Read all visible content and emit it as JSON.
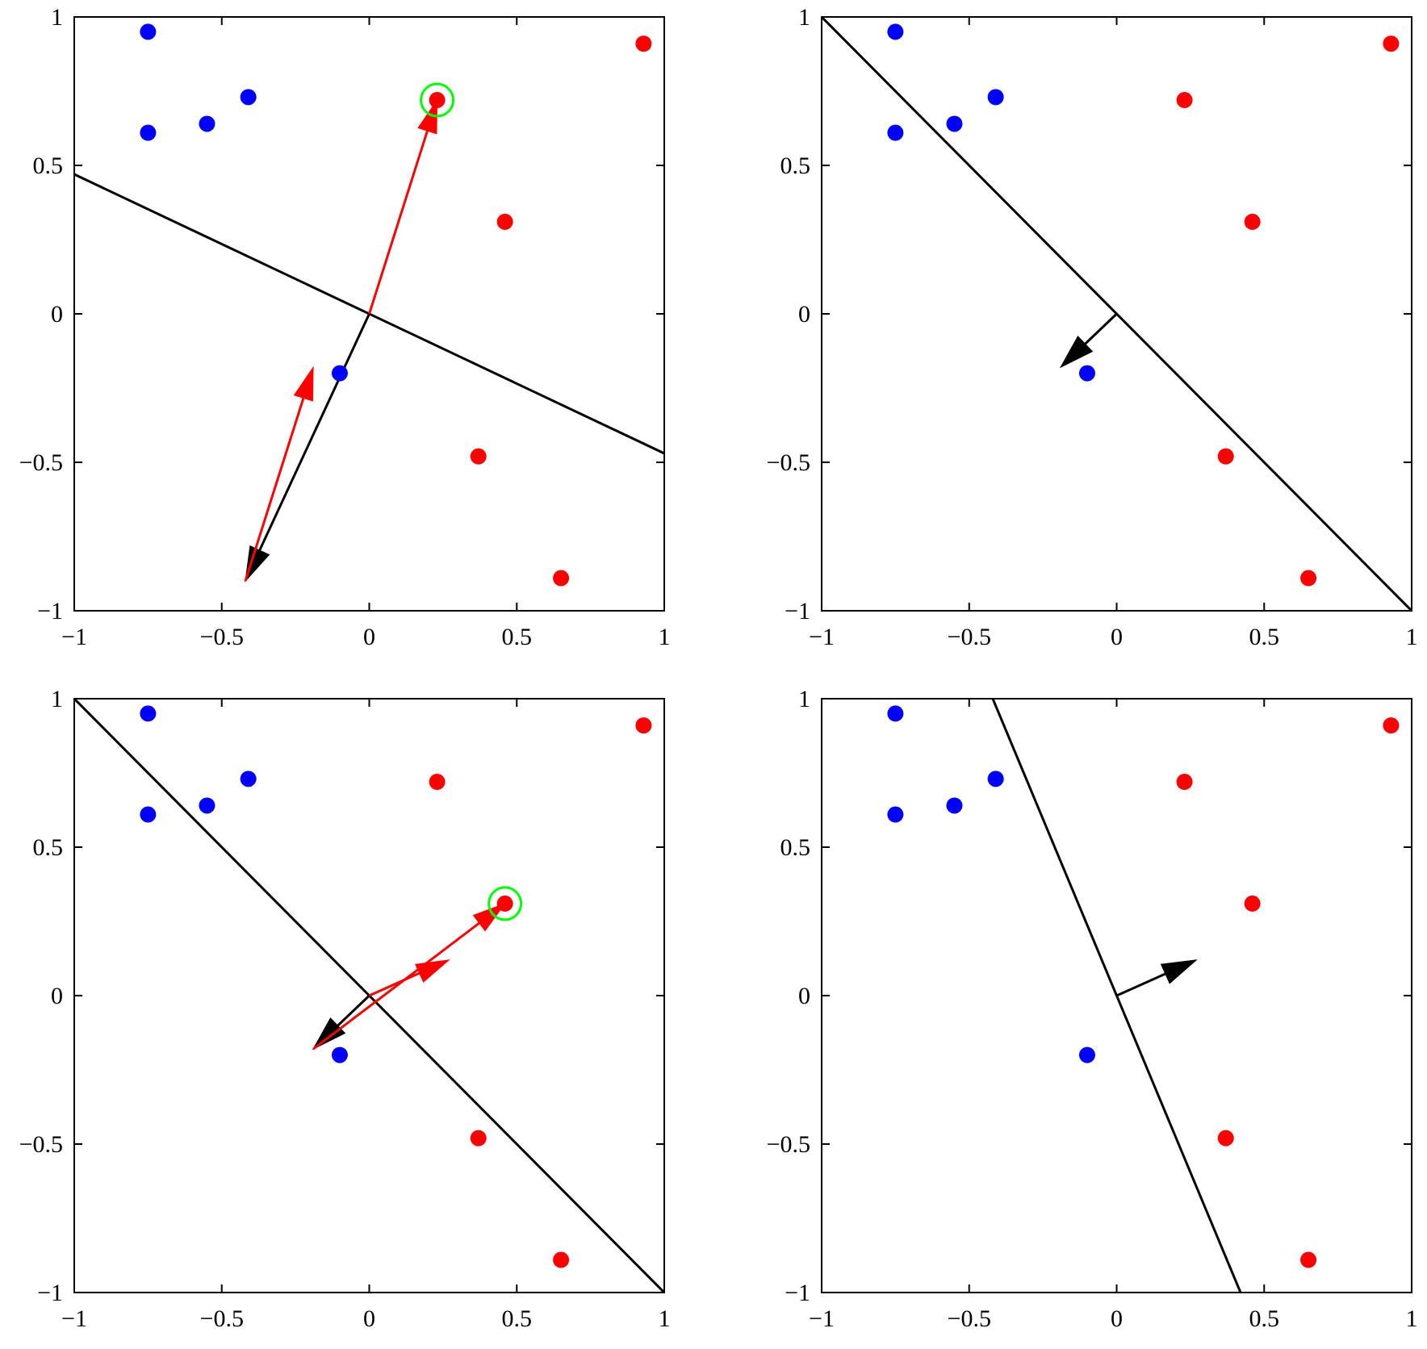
{
  "colors": {
    "class_a": "#0000ff",
    "class_b": "#ff0000",
    "highlight": "#00ff00",
    "boundary": "#000000",
    "update": "#ff0000"
  },
  "chart_data": [
    {
      "type": "scatter",
      "panel": "top-left",
      "xlim": [
        -1,
        1
      ],
      "ylim": [
        -1,
        1
      ],
      "xticks": [
        "−1",
        "−0.5",
        "0",
        "0.5",
        "1"
      ],
      "yticks": [
        "−1",
        "−0.5",
        "0",
        "0.5",
        "1"
      ],
      "grid": false,
      "series": [
        {
          "points": [
            [
              -0.75,
              0.61
            ],
            [
              -0.75,
              0.95
            ],
            [
              -0.55,
              0.64
            ],
            [
              -0.41,
              0.73
            ],
            [
              -0.1,
              -0.2
            ]
          ],
          "color_key": "class_a"
        },
        {
          "points": [
            [
              0.23,
              0.72
            ],
            [
              0.46,
              0.31
            ],
            [
              0.37,
              -0.48
            ],
            [
              0.65,
              -0.89
            ],
            [
              0.93,
              0.91
            ]
          ],
          "color_key": "class_b"
        }
      ],
      "highlighted_point": [
        0.23,
        0.72
      ],
      "boundary_line": [
        [
          -1,
          0.47
        ],
        [
          1,
          -0.47
        ]
      ],
      "weight_vector": {
        "from": [
          0,
          0
        ],
        "to": [
          -0.42,
          -0.9
        ]
      },
      "update_vectors": [
        {
          "from": [
            0,
            0
          ],
          "to": [
            0.23,
            0.72
          ]
        },
        {
          "from": [
            -0.42,
            -0.9
          ],
          "to": [
            -0.19,
            -0.18
          ]
        }
      ]
    },
    {
      "type": "scatter",
      "panel": "top-right",
      "xlim": [
        -1,
        1
      ],
      "ylim": [
        -1,
        1
      ],
      "xticks": [
        "−1",
        "−0.5",
        "0",
        "0.5",
        "1"
      ],
      "yticks": [
        "−1",
        "−0.5",
        "0",
        "0.5",
        "1"
      ],
      "grid": false,
      "series": [
        {
          "points": [
            [
              -0.75,
              0.61
            ],
            [
              -0.75,
              0.95
            ],
            [
              -0.55,
              0.64
            ],
            [
              -0.41,
              0.73
            ],
            [
              -0.1,
              -0.2
            ]
          ],
          "color_key": "class_a"
        },
        {
          "points": [
            [
              0.23,
              0.72
            ],
            [
              0.46,
              0.31
            ],
            [
              0.37,
              -0.48
            ],
            [
              0.65,
              -0.89
            ],
            [
              0.93,
              0.91
            ]
          ],
          "color_key": "class_b"
        }
      ],
      "boundary_line": [
        [
          -1,
          1
        ],
        [
          1,
          -1
        ]
      ],
      "weight_vector": {
        "from": [
          0,
          0
        ],
        "to": [
          -0.19,
          -0.18
        ]
      },
      "update_vectors": []
    },
    {
      "type": "scatter",
      "panel": "bottom-left",
      "xlim": [
        -1,
        1
      ],
      "ylim": [
        -1,
        1
      ],
      "xticks": [
        "−1",
        "−0.5",
        "0",
        "0.5",
        "1"
      ],
      "yticks": [
        "−1",
        "−0.5",
        "0",
        "0.5",
        "1"
      ],
      "grid": false,
      "series": [
        {
          "points": [
            [
              -0.75,
              0.61
            ],
            [
              -0.75,
              0.95
            ],
            [
              -0.55,
              0.64
            ],
            [
              -0.41,
              0.73
            ],
            [
              -0.1,
              -0.2
            ]
          ],
          "color_key": "class_a"
        },
        {
          "points": [
            [
              0.23,
              0.72
            ],
            [
              0.46,
              0.31
            ],
            [
              0.37,
              -0.48
            ],
            [
              0.65,
              -0.89
            ],
            [
              0.93,
              0.91
            ]
          ],
          "color_key": "class_b"
        }
      ],
      "highlighted_point": [
        0.46,
        0.31
      ],
      "boundary_line": [
        [
          -1,
          1
        ],
        [
          1,
          -1
        ]
      ],
      "weight_vector": {
        "from": [
          0,
          0
        ],
        "to": [
          -0.19,
          -0.18
        ]
      },
      "update_vectors": [
        {
          "from": [
            -0.19,
            -0.18
          ],
          "to": [
            0.46,
            0.31
          ]
        },
        {
          "from": [
            0,
            0
          ],
          "to": [
            0.27,
            0.12
          ]
        }
      ]
    },
    {
      "type": "scatter",
      "panel": "bottom-right",
      "xlim": [
        -1,
        1
      ],
      "ylim": [
        -1,
        1
      ],
      "xticks": [
        "−1",
        "−0.5",
        "0",
        "0.5",
        "1"
      ],
      "yticks": [
        "−1",
        "−0.5",
        "0",
        "0.5",
        "1"
      ],
      "grid": false,
      "series": [
        {
          "points": [
            [
              -0.75,
              0.61
            ],
            [
              -0.75,
              0.95
            ],
            [
              -0.55,
              0.64
            ],
            [
              -0.41,
              0.73
            ],
            [
              -0.1,
              -0.2
            ]
          ],
          "color_key": "class_a"
        },
        {
          "points": [
            [
              0.23,
              0.72
            ],
            [
              0.46,
              0.31
            ],
            [
              0.37,
              -0.48
            ],
            [
              0.65,
              -0.89
            ],
            [
              0.93,
              0.91
            ]
          ],
          "color_key": "class_b"
        }
      ],
      "boundary_line": [
        [
          -0.42,
          1
        ],
        [
          0.42,
          -1
        ]
      ],
      "weight_vector": {
        "from": [
          0,
          0
        ],
        "to": [
          0.27,
          0.12
        ]
      },
      "update_vectors": []
    }
  ]
}
